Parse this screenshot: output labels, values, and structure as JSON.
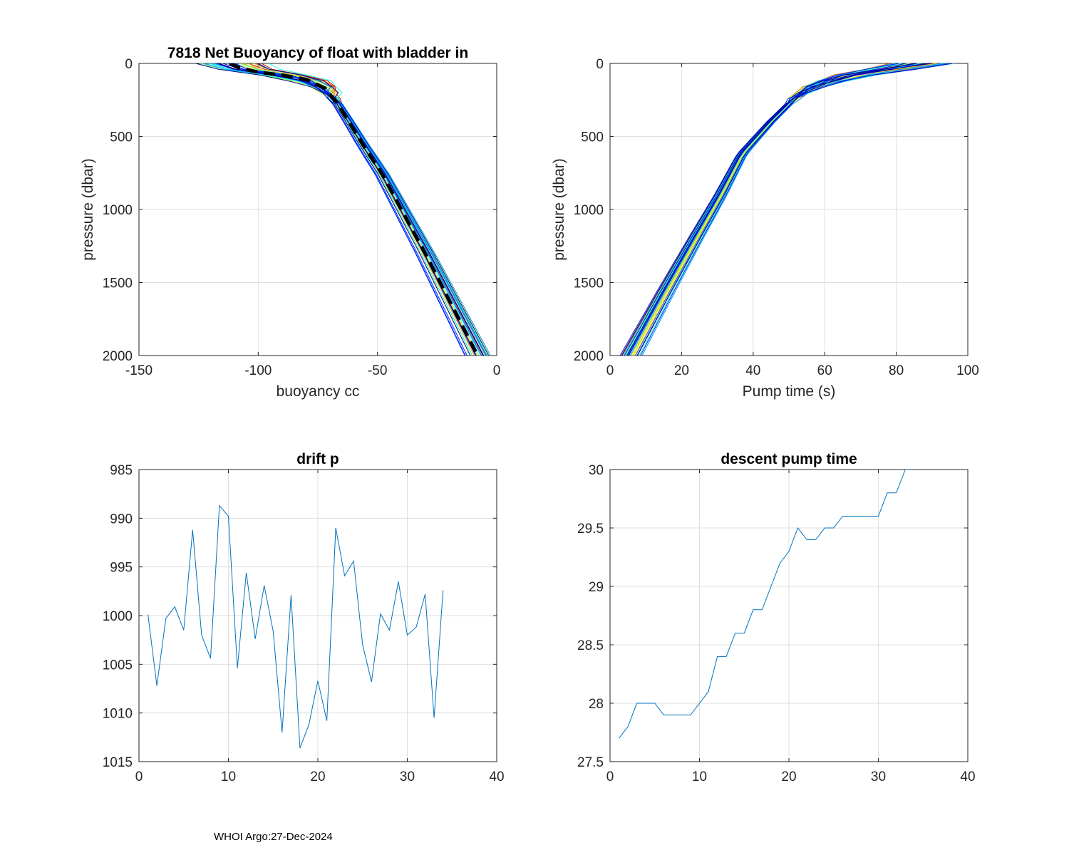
{
  "footer": {
    "text": "WHOI Argo:27-Dec-2024"
  },
  "colors": {
    "axis": "#262626",
    "grid": "#dfdfdf",
    "series": "#0072bd",
    "mean": "#000000",
    "profile_palette": [
      "#00008f",
      "#0000c8",
      "#0020ff",
      "#0060ff",
      "#00a0ff",
      "#00d8ff",
      "#20ffe0",
      "#60ff9f",
      "#a0ff60",
      "#e0ff20",
      "#ffd000",
      "#ff9000",
      "#ff5000",
      "#e01000"
    ]
  },
  "chart_data": [
    {
      "id": "buoyancy",
      "type": "line",
      "title": "7818 Net Buoyancy of float with bladder in",
      "xlabel": "buoyancy cc",
      "ylabel": "pressure (dbar)",
      "xlim": [
        -150,
        0
      ],
      "ylim": [
        0,
        2000
      ],
      "y_reversed": true,
      "xticks": [
        -150,
        -100,
        -50,
        0
      ],
      "yticks": [
        0,
        500,
        1000,
        1500,
        2000
      ],
      "grid": true,
      "profile_count": 34,
      "mean_profile": {
        "name": "mean",
        "style": "dashed",
        "points": [
          [
            -112,
            0
          ],
          [
            -108,
            30
          ],
          [
            -100,
            60
          ],
          [
            -90,
            80
          ],
          [
            -80,
            110
          ],
          [
            -72,
            170
          ],
          [
            -67,
            270
          ],
          [
            -62,
            400
          ],
          [
            -56,
            560
          ],
          [
            -48,
            760
          ],
          [
            -40,
            1000
          ],
          [
            -30,
            1300
          ],
          [
            -19,
            1650
          ],
          [
            -8,
            2000
          ]
        ]
      }
    },
    {
      "id": "pumptime",
      "type": "line",
      "title": "",
      "xlabel": "Pump time (s)",
      "ylabel": "pressure (dbar)",
      "xlim": [
        0,
        100
      ],
      "ylim": [
        0,
        2000
      ],
      "y_reversed": true,
      "xticks": [
        0,
        20,
        40,
        60,
        80,
        100
      ],
      "yticks": [
        0,
        500,
        1000,
        1500,
        2000
      ],
      "grid": true,
      "profile_count": 34,
      "base_profile": [
        [
          88,
          0
        ],
        [
          82,
          25
        ],
        [
          75,
          50
        ],
        [
          66,
          90
        ],
        [
          58,
          150
        ],
        [
          52,
          230
        ],
        [
          45,
          400
        ],
        [
          37,
          620
        ],
        [
          31,
          900
        ],
        [
          24,
          1200
        ],
        [
          16,
          1550
        ],
        [
          6,
          2000
        ]
      ]
    },
    {
      "id": "drift",
      "type": "line",
      "title": "drift p",
      "xlabel": "",
      "ylabel": "",
      "xlim": [
        0,
        40
      ],
      "ylim": [
        985,
        1015
      ],
      "y_reversed": true,
      "xticks": [
        0,
        10,
        20,
        30,
        40
      ],
      "yticks": [
        985,
        990,
        995,
        1000,
        1005,
        1010,
        1015
      ],
      "grid": true,
      "series": [
        {
          "name": "drift p",
          "x": [
            1,
            2,
            3,
            4,
            5,
            6,
            7,
            8,
            9,
            10,
            11,
            12,
            13,
            14,
            15,
            16,
            17,
            18,
            19,
            20,
            21,
            22,
            23,
            24,
            25,
            26,
            27,
            28,
            29,
            30,
            31,
            32,
            33,
            34
          ],
          "values": [
            999.9,
            1007.2,
            1000.3,
            999.1,
            1001.5,
            991.2,
            1002.0,
            1004.4,
            988.7,
            989.8,
            1005.4,
            995.6,
            1002.4,
            996.9,
            1001.6,
            1012.0,
            997.9,
            1013.6,
            1011.2,
            1006.7,
            1010.8,
            991.0,
            995.9,
            994.4,
            1003.0,
            1006.8,
            999.8,
            1001.5,
            996.5,
            1002.0,
            1001.2,
            997.8,
            1010.5,
            997.4
          ]
        }
      ]
    },
    {
      "id": "descent",
      "type": "line",
      "title": "descent pump time",
      "xlabel": "",
      "ylabel": "",
      "xlim": [
        0,
        40
      ],
      "ylim": [
        27.5,
        30
      ],
      "y_reversed": false,
      "xticks": [
        0,
        10,
        20,
        30,
        40
      ],
      "yticks": [
        27.5,
        28,
        28.5,
        29,
        29.5,
        30
      ],
      "yticklabels": [
        "27.5",
        "28",
        "28.5",
        "29",
        "29.5",
        "30"
      ],
      "grid": true,
      "series": [
        {
          "name": "descent pump time",
          "x": [
            1,
            2,
            3,
            4,
            5,
            6,
            7,
            8,
            9,
            10,
            11,
            12,
            13,
            14,
            15,
            16,
            17,
            18,
            19,
            20,
            21,
            22,
            23,
            24,
            25,
            26,
            27,
            28,
            29,
            30,
            31,
            32,
            33,
            34
          ],
          "values": [
            27.7,
            27.8,
            28.0,
            28.0,
            28.0,
            27.9,
            27.9,
            27.9,
            27.9,
            28.0,
            28.1,
            28.4,
            28.4,
            28.6,
            28.6,
            28.8,
            28.8,
            29.0,
            29.2,
            29.3,
            29.5,
            29.4,
            29.4,
            29.5,
            29.5,
            29.6,
            29.6,
            29.6,
            29.6,
            29.6,
            29.8,
            29.8,
            30.0,
            30.0
          ]
        }
      ]
    }
  ]
}
